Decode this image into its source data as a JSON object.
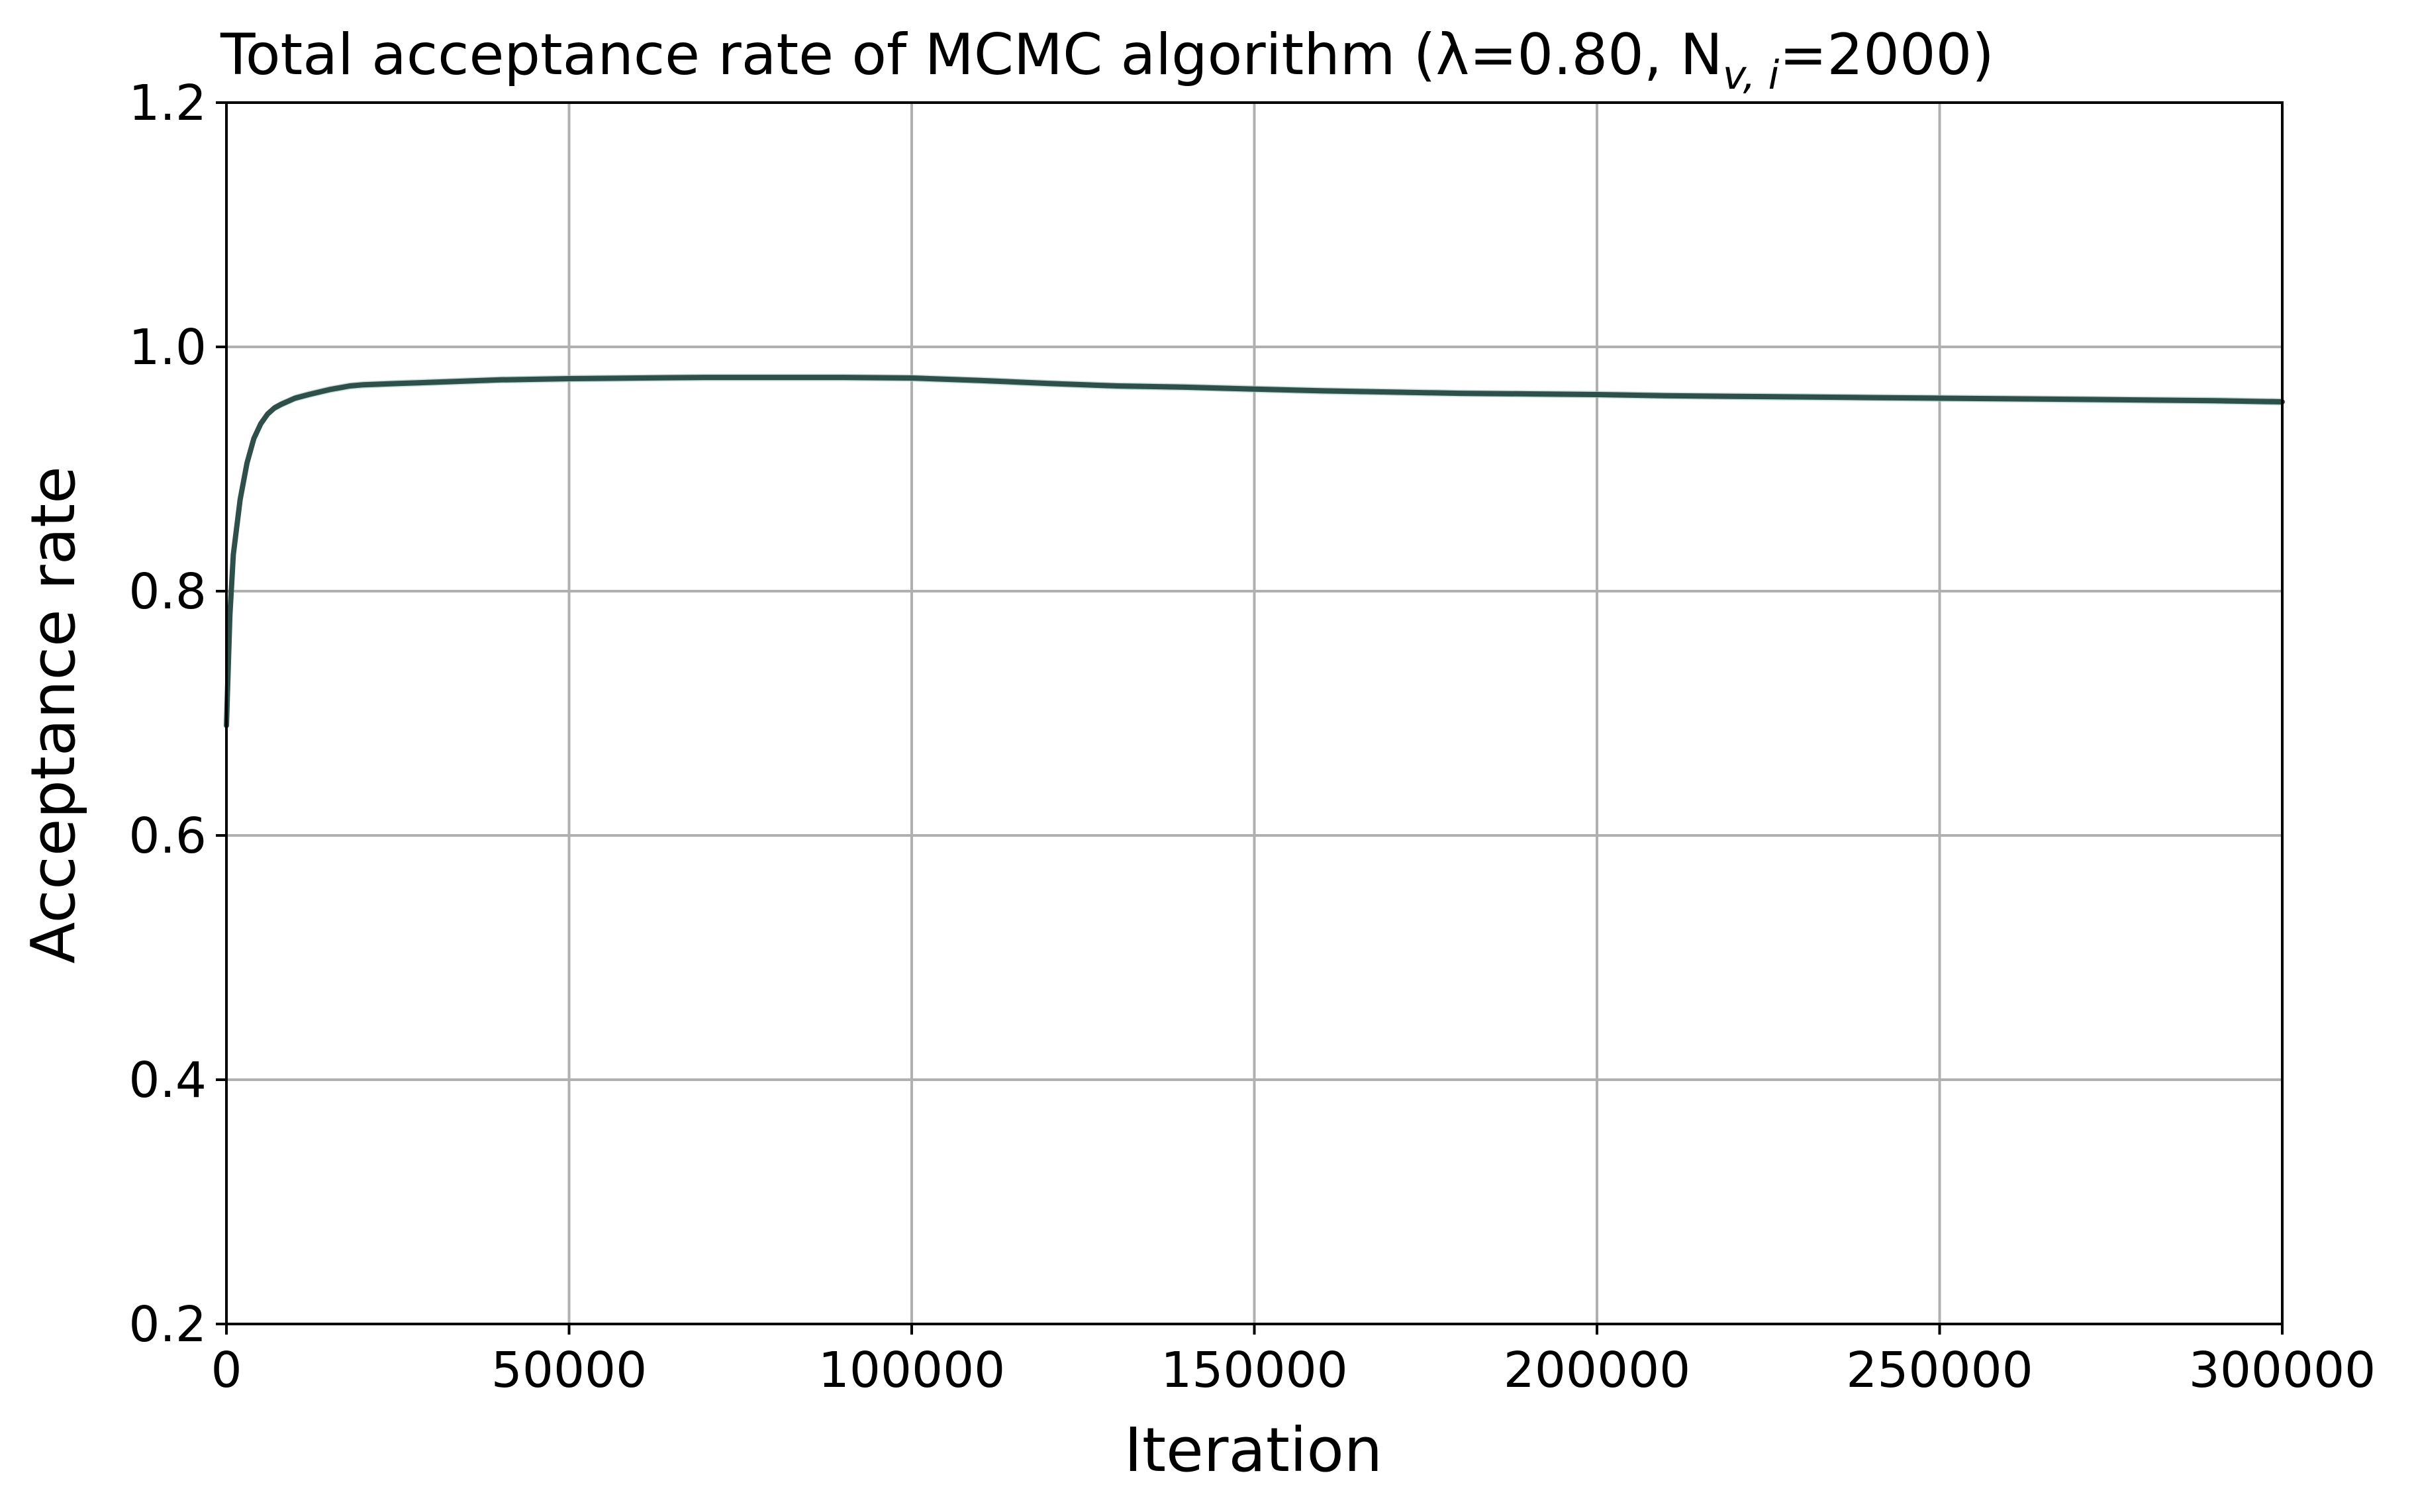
{
  "chart_data": {
    "type": "line",
    "title": "Total acceptance rate of MCMC algorithm (λ=0.80, N",
    "title_subscript": "v, i",
    "title_suffix": "=2000)",
    "xlabel": "Iteration",
    "ylabel": "Acceptance rate",
    "xlim": [
      0,
      300000
    ],
    "ylim": [
      0.2,
      1.2
    ],
    "x_ticks": [
      0,
      50000,
      100000,
      150000,
      200000,
      250000,
      300000
    ],
    "x_tick_labels": [
      "0",
      "50000",
      "100000",
      "150000",
      "200000",
      "250000",
      "300000"
    ],
    "y_ticks": [
      0.2,
      0.4,
      0.6,
      0.8,
      1.0,
      1.2
    ],
    "y_tick_labels": [
      "0.2",
      "0.4",
      "0.6",
      "0.8",
      "1.0",
      "1.2"
    ],
    "grid": true,
    "legend": "none",
    "colors": {
      "line": "#2f4f4a",
      "band": "#9fc9c0",
      "grid": "#b0b0b0"
    },
    "series": [
      {
        "x": [
          0,
          500,
          1000,
          2000,
          3000,
          4000,
          5000,
          6000,
          7000,
          8000,
          10000,
          12000,
          15000,
          18000,
          20000,
          25000,
          30000,
          40000,
          50000,
          60000,
          70000,
          80000,
          90000,
          100000,
          110000,
          120000,
          130000,
          140000,
          150000,
          160000,
          170000,
          180000,
          190000,
          200000,
          210000,
          220000,
          230000,
          240000,
          250000,
          260000,
          270000,
          280000,
          290000,
          300000
        ],
        "y": [
          0.69,
          0.78,
          0.83,
          0.875,
          0.905,
          0.925,
          0.937,
          0.945,
          0.95,
          0.953,
          0.958,
          0.961,
          0.965,
          0.968,
          0.969,
          0.97,
          0.971,
          0.973,
          0.974,
          0.9745,
          0.975,
          0.975,
          0.975,
          0.9745,
          0.9725,
          0.97,
          0.968,
          0.967,
          0.9655,
          0.964,
          0.963,
          0.962,
          0.9615,
          0.961,
          0.96,
          0.9595,
          0.959,
          0.9585,
          0.958,
          0.9575,
          0.957,
          0.9565,
          0.956,
          0.955
        ],
        "band": 0.003
      }
    ]
  }
}
